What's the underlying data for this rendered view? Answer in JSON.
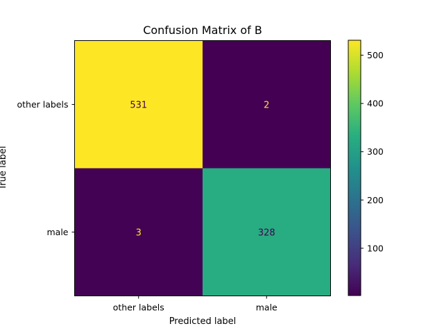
{
  "chart_data": {
    "type": "heatmap",
    "title": "Confusion Matrix of B",
    "xlabel": "Predicted label",
    "ylabel": "True label",
    "x_categories": [
      "other labels",
      "male"
    ],
    "y_categories": [
      "other labels",
      "male"
    ],
    "matrix": [
      [
        531,
        2
      ],
      [
        3,
        328
      ]
    ],
    "colormap": "viridis",
    "colorbar": {
      "range": [
        2,
        531
      ],
      "ticks": [
        100,
        200,
        300,
        400,
        500
      ]
    },
    "grid": false
  }
}
